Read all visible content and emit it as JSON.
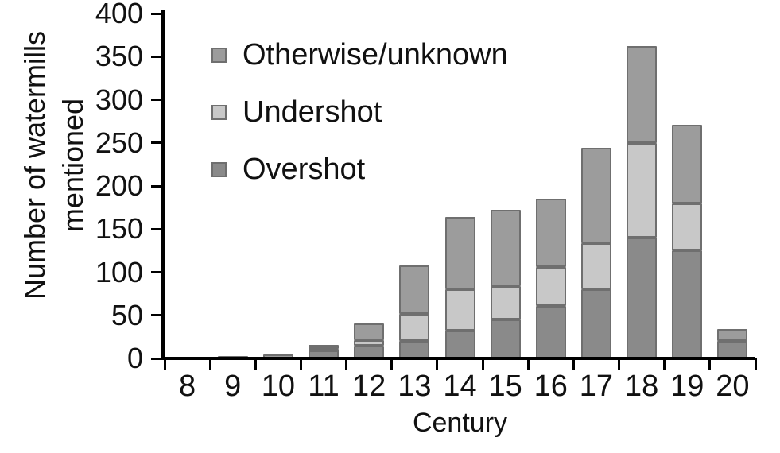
{
  "chart_data": {
    "type": "bar",
    "stacked": true,
    "title": "",
    "xlabel": "Century",
    "ylabel_lines": [
      "Number of watermills",
      "mentioned"
    ],
    "categories": [
      "8",
      "9",
      "10",
      "11",
      "12",
      "13",
      "14",
      "15",
      "16",
      "17",
      "18",
      "19",
      "20"
    ],
    "series": [
      {
        "name": "Overshot",
        "color": "#8a8a8a",
        "values": [
          0,
          0,
          0,
          9,
          15,
          20,
          32,
          45,
          61,
          80,
          140,
          125,
          20
        ]
      },
      {
        "name": "Undershot",
        "color": "#c8c8c8",
        "values": [
          0,
          0,
          0,
          2,
          6,
          32,
          48,
          39,
          45,
          54,
          110,
          55,
          0
        ]
      },
      {
        "name": "Otherwise/unknown",
        "color": "#9c9c9c",
        "values": [
          2,
          3,
          5,
          5,
          20,
          56,
          84,
          88,
          79,
          110,
          112,
          91,
          14
        ]
      }
    ],
    "legend": {
      "position": "top-left-inside",
      "entries": [
        "Otherwise/unknown",
        "Undershot",
        "Overshot"
      ]
    },
    "ylim": [
      0,
      400
    ],
    "yticks": [
      0,
      50,
      100,
      150,
      200,
      250,
      300,
      350,
      400
    ],
    "grid": false,
    "axis_color": "#000000",
    "segment_border_color": "#6f6f6f",
    "text_color": "#111111",
    "background_color": "#ffffff"
  }
}
